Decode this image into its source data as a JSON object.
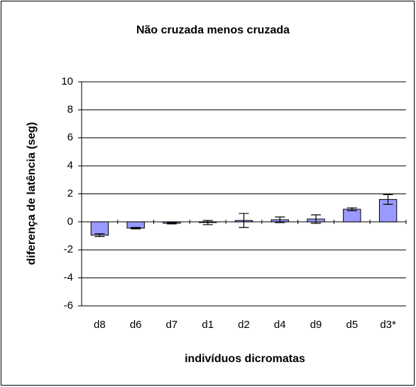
{
  "chart_data": {
    "type": "bar",
    "title": "Não cruzada menos cruzada",
    "x_label": "indivíduos dicromatas",
    "y_label": "diferença de latência (seg)",
    "categories": [
      "d8",
      "d6",
      "d7",
      "d1",
      "d2",
      "d4",
      "d9",
      "d5",
      "d3*"
    ],
    "values": [
      -0.95,
      -0.45,
      -0.1,
      -0.05,
      0.1,
      0.15,
      0.2,
      0.9,
      1.6
    ],
    "errors": [
      0.1,
      0.05,
      0.05,
      0.15,
      0.5,
      0.2,
      0.3,
      0.1,
      0.35
    ],
    "color": "#9999ff",
    "ylim": [
      -6,
      10
    ],
    "yticks": [
      -6,
      -4,
      -2,
      0,
      2,
      4,
      6,
      8,
      10
    ],
    "grid": true
  }
}
